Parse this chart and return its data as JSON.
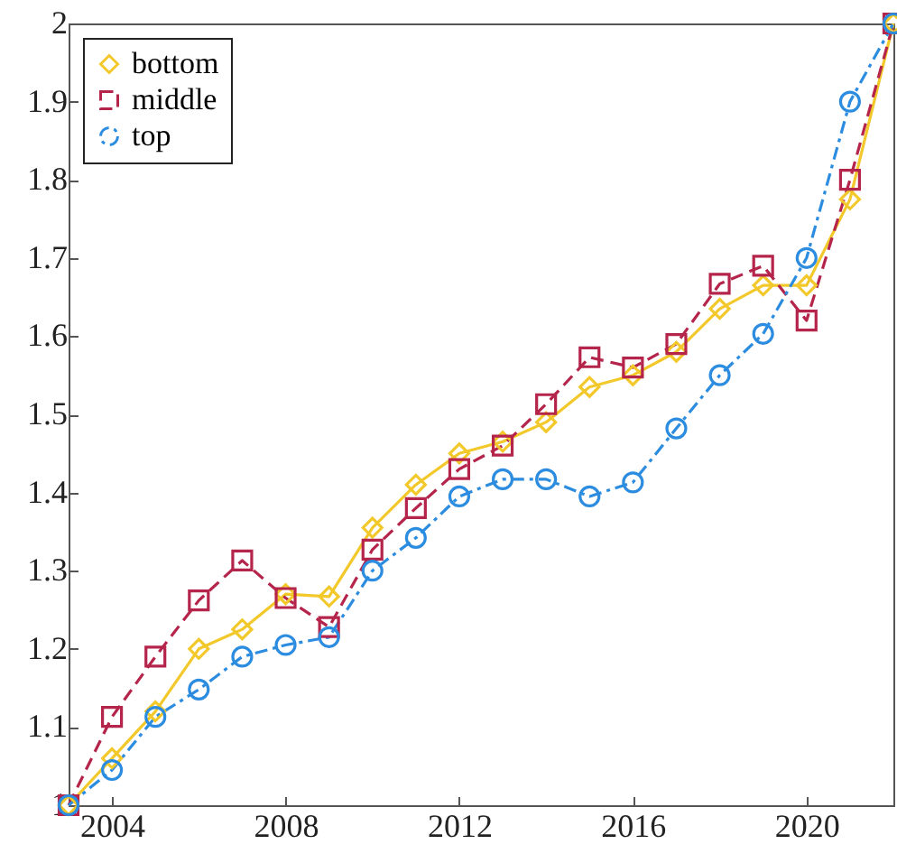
{
  "chart_data": {
    "type": "line",
    "x": [
      2003,
      2004,
      2005,
      2006,
      2007,
      2008,
      2009,
      2010,
      2011,
      2012,
      2013,
      2014,
      2015,
      2016,
      2017,
      2018,
      2019,
      2020,
      2021,
      2022
    ],
    "xlim": [
      2003,
      2022
    ],
    "xticks": [
      2004,
      2008,
      2012,
      2016,
      2020
    ],
    "ylim": [
      1,
      2
    ],
    "yticks": [
      1,
      1.1,
      1.2,
      1.3,
      1.4,
      1.5,
      1.6,
      1.7,
      1.8,
      1.9,
      2
    ],
    "legend": "top left",
    "grid": false,
    "series": [
      {
        "name": "bottom",
        "color": "#f2c82a",
        "marker": "diamond",
        "line_style": "solid",
        "values": [
          1.0,
          1.06,
          1.12,
          1.2,
          1.225,
          1.27,
          1.267,
          1.355,
          1.41,
          1.45,
          1.465,
          1.49,
          1.535,
          1.55,
          1.58,
          1.635,
          1.665,
          1.665,
          1.775,
          2.0
        ]
      },
      {
        "name": "middle",
        "color": "#b5244a",
        "marker": "square",
        "line_style": "dashed",
        "values": [
          1.0,
          1.113,
          1.19,
          1.262,
          1.313,
          1.265,
          1.228,
          1.327,
          1.38,
          1.43,
          1.46,
          1.513,
          1.573,
          1.56,
          1.59,
          1.667,
          1.69,
          1.62,
          1.8,
          2.0
        ]
      },
      {
        "name": "top",
        "color": "#2b8ce0",
        "marker": "circle",
        "line_style": "dashdot",
        "values": [
          1.0,
          1.045,
          1.113,
          1.148,
          1.19,
          1.205,
          1.215,
          1.3,
          1.342,
          1.395,
          1.417,
          1.417,
          1.395,
          1.413,
          1.482,
          1.55,
          1.603,
          1.7,
          1.9,
          2.0
        ]
      }
    ]
  }
}
